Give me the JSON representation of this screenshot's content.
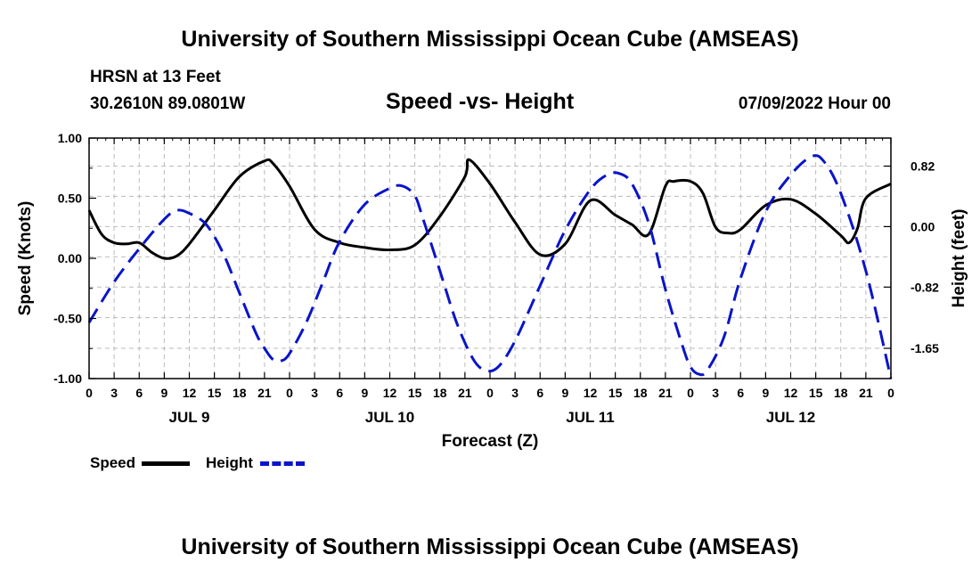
{
  "page": {
    "title": "University of Southern Mississippi Ocean Cube (AMSEAS)",
    "station": "HRSN at 13 Feet",
    "coords": "30.2610N  89.0801W",
    "subtitle": "Speed -vs- Height",
    "datetime": "07/09/2022 Hour 00",
    "footer_title": "University of Southern Mississippi Ocean Cube (AMSEAS)"
  },
  "colors": {
    "speed": "#000000",
    "height": "#0a14c8",
    "grid": "#bbbbbb"
  },
  "chart_data": {
    "type": "line",
    "title": "Speed -vs- Height",
    "xlabel": "Forecast (Z)",
    "ylabel": "Speed (Knots)",
    "y2label": "Height (feet)",
    "x_range_hours": [
      0,
      96
    ],
    "x_tick_step_hours": 3,
    "x_tick_labels": [
      "0",
      "3",
      "6",
      "9",
      "12",
      "15",
      "18",
      "21",
      "0",
      "3",
      "6",
      "9",
      "12",
      "15",
      "18",
      "21",
      "0",
      "3",
      "6",
      "9",
      "12",
      "15",
      "18",
      "21",
      "0",
      "3",
      "6",
      "9",
      "12",
      "15",
      "18",
      "21",
      "0"
    ],
    "day_labels": [
      {
        "label": "JUL 9",
        "hour": 12
      },
      {
        "label": "JUL 10",
        "hour": 36
      },
      {
        "label": "JUL 11",
        "hour": 60
      },
      {
        "label": "JUL 12",
        "hour": 84
      }
    ],
    "ylim": [
      -1.0,
      1.0
    ],
    "y_ticks": [
      "1.00",
      "0.50",
      "0.00",
      "-0.50",
      "-1.00"
    ],
    "y_tick_values": [
      1.0,
      0.5,
      0.0,
      -0.5,
      -1.0
    ],
    "y2lim": [
      -2.06,
      1.2
    ],
    "y2_ticks": [
      "0.82",
      "0.00",
      "-0.82",
      "-1.65"
    ],
    "y2_tick_values": [
      0.82,
      0.0,
      -0.82,
      -1.65
    ],
    "grid": true,
    "legend": [
      {
        "name": "Speed",
        "style": "solid"
      },
      {
        "name": "Height",
        "style": "dashed"
      }
    ],
    "series": [
      {
        "name": "Speed",
        "axis": "left",
        "x": [
          0,
          1.5,
          3,
          4.5,
          6,
          7.5,
          9,
          10.5,
          12,
          15,
          18,
          21,
          22,
          24,
          27,
          30,
          33,
          36,
          39,
          42,
          45,
          45.5,
          48,
          51,
          54,
          57,
          60,
          63,
          65,
          67,
          69,
          70,
          72,
          73.5,
          75,
          76.5,
          78,
          81,
          84,
          87,
          90,
          91,
          92,
          93,
          96
        ],
        "values": [
          0.4,
          0.2,
          0.13,
          0.12,
          0.13,
          0.05,
          0.0,
          0.02,
          0.12,
          0.4,
          0.68,
          0.81,
          0.79,
          0.6,
          0.24,
          0.13,
          0.09,
          0.07,
          0.11,
          0.35,
          0.68,
          0.82,
          0.62,
          0.3,
          0.03,
          0.12,
          0.48,
          0.36,
          0.28,
          0.2,
          0.6,
          0.64,
          0.64,
          0.54,
          0.26,
          0.21,
          0.24,
          0.44,
          0.49,
          0.37,
          0.19,
          0.13,
          0.25,
          0.5,
          0.62
        ]
      },
      {
        "name": "Height",
        "axis": "right",
        "x": [
          0,
          3,
          6,
          9,
          10.5,
          12,
          14,
          16,
          18,
          20,
          21,
          22,
          23,
          24,
          26,
          28,
          30,
          33,
          36,
          37.5,
          39,
          40,
          42,
          44,
          46,
          47.5,
          49,
          51,
          54,
          57,
          60,
          62,
          63.5,
          65,
          67,
          69,
          71,
          72,
          73,
          74,
          76,
          78,
          81,
          84,
          86.5,
          88,
          90,
          93,
          96
        ],
        "values": [
          -1.3,
          -0.75,
          -0.3,
          0.1,
          0.22,
          0.18,
          0.03,
          -0.35,
          -0.9,
          -1.45,
          -1.65,
          -1.8,
          -1.82,
          -1.72,
          -1.3,
          -0.75,
          -0.2,
          0.3,
          0.52,
          0.55,
          0.42,
          0.1,
          -0.6,
          -1.3,
          -1.8,
          -1.95,
          -1.9,
          -1.55,
          -0.8,
          -0.05,
          0.5,
          0.7,
          0.72,
          0.58,
          0.05,
          -0.85,
          -1.6,
          -1.9,
          -2.0,
          -1.95,
          -1.5,
          -0.7,
          0.2,
          0.7,
          0.95,
          0.88,
          0.45,
          -0.6,
          -2.06
        ]
      }
    ]
  }
}
